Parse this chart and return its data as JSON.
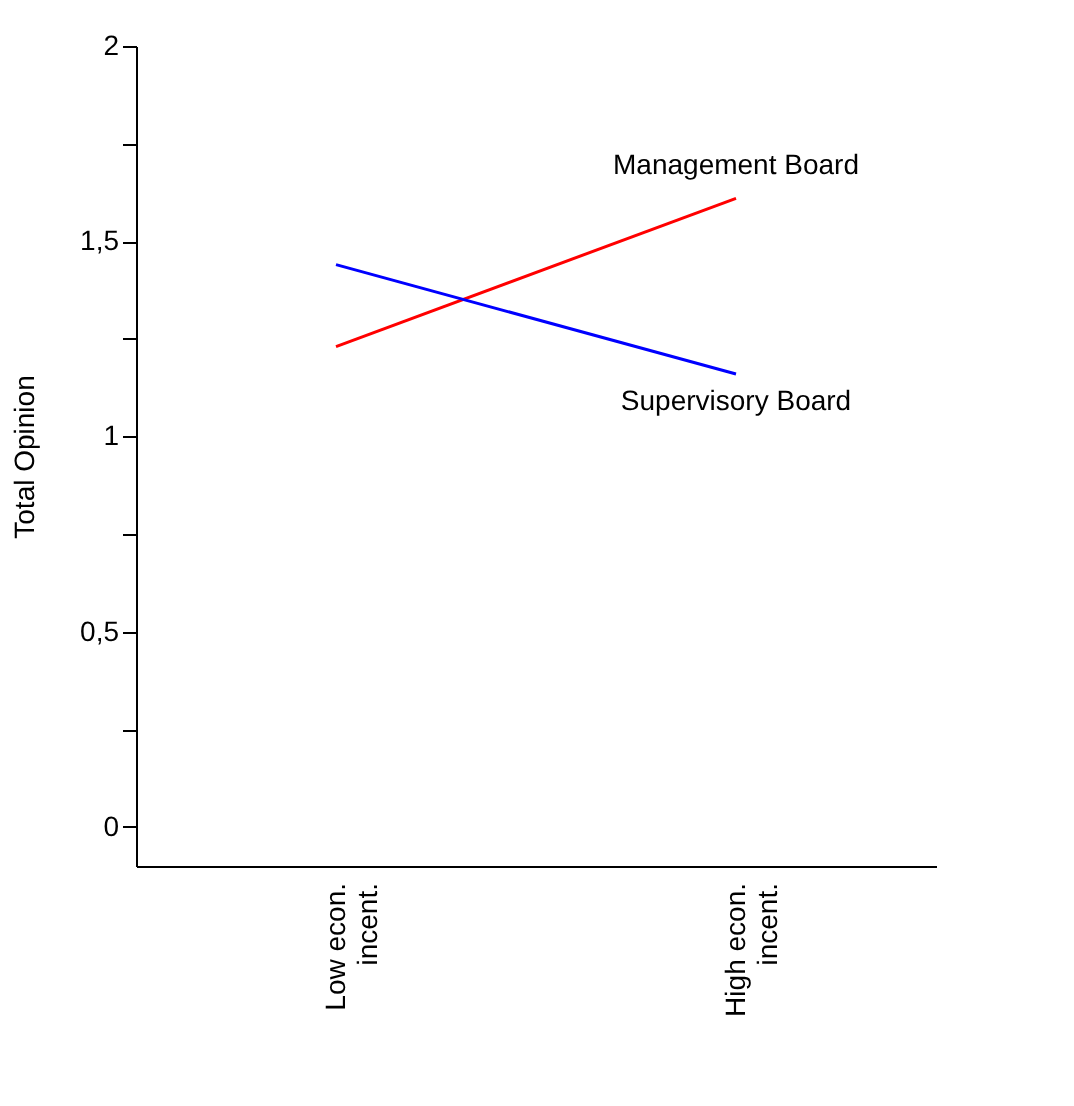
{
  "chart_data": {
    "type": "line",
    "ylabel": "Total Opinion",
    "categories": [
      "Low econ. incent.",
      "High econ. incent."
    ],
    "series": [
      {
        "name": "Management Board",
        "color": "#ff0000",
        "values": [
          1.23,
          1.61
        ]
      },
      {
        "name": "Supervisory Board",
        "color": "#0000ff",
        "values": [
          1.44,
          1.16
        ]
      }
    ],
    "ylim": [
      -0.1,
      2
    ],
    "yticks": [
      0,
      {
        "value": 0.25,
        "label": null
      },
      {
        "value": 0.5,
        "label": "0,5"
      },
      {
        "value": 0.75,
        "label": null
      },
      1,
      {
        "value": 1.25,
        "label": null
      },
      {
        "value": 1.5,
        "label": "1,5"
      },
      {
        "value": 1.75,
        "label": null
      },
      2
    ],
    "grid": false,
    "legend": false,
    "marker": "none",
    "line_style": "solid"
  }
}
